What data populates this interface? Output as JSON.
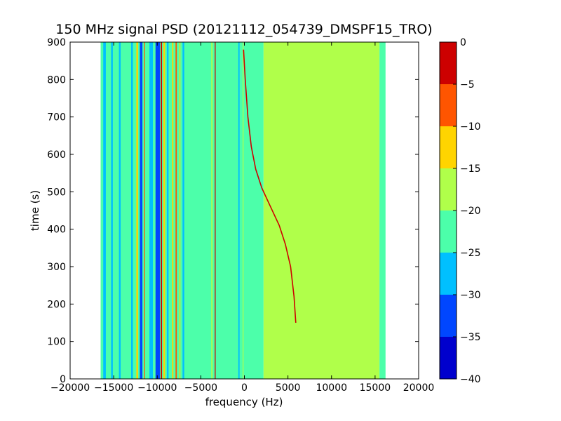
{
  "chart_data": {
    "type": "heatmap",
    "title": "150 MHz signal PSD (20121112_054739_DMSPF15_TRO)",
    "xlabel": "frequency (Hz)",
    "ylabel": "time (s)",
    "xlim": [
      -20000,
      20000
    ],
    "ylim": [
      0,
      900
    ],
    "xticks": [
      -20000,
      -15000,
      -10000,
      -5000,
      0,
      5000,
      10000,
      15000,
      20000
    ],
    "xtick_labels": [
      "−20000",
      "−15000",
      "−10000",
      "−5000",
      "0",
      "5000",
      "10000",
      "15000",
      "20000"
    ],
    "yticks": [
      0,
      100,
      200,
      300,
      400,
      500,
      600,
      700,
      800,
      900
    ],
    "ytick_labels": [
      "0",
      "100",
      "200",
      "300",
      "400",
      "500",
      "600",
      "700",
      "800",
      "900"
    ],
    "data_extent_x": [
      -16500,
      16200
    ],
    "colorbar": {
      "levels": [
        -40,
        -35,
        -30,
        -25,
        -20,
        -15,
        -10,
        -5,
        0
      ],
      "tick_labels": [
        "−40",
        "−35",
        "−30",
        "−25",
        "−20",
        "−15",
        "−10",
        "−5",
        "0"
      ],
      "colors": [
        "#0000cd",
        "#0046ff",
        "#00c0ff",
        "#4cffaa",
        "#b0ff4a",
        "#ffd400",
        "#ff5500",
        "#cd0000"
      ]
    },
    "regions": [
      {
        "x0": -16500,
        "x1": 0,
        "y0": 0,
        "y1": 900,
        "level": -22.5
      },
      {
        "x0": 0,
        "x1": 2200,
        "y0": 0,
        "y1": 900,
        "level": -20
      },
      {
        "x0": 2200,
        "x1": 15500,
        "y0": 0,
        "y1": 900,
        "level": -17.5
      },
      {
        "x0": 15500,
        "x1": 16200,
        "y0": 0,
        "y1": 900,
        "level": -22.5
      }
    ],
    "bands": [
      {
        "x0": -16200,
        "x1": -15900,
        "level": -27.5
      },
      {
        "x0": -15300,
        "x1": -15100,
        "level": -27.5
      },
      {
        "x0": -14400,
        "x1": -14200,
        "level": -27.5
      },
      {
        "x0": -13000,
        "x1": -12800,
        "level": -27.5
      },
      {
        "x0": -12400,
        "x1": -12200,
        "level": -12.5
      },
      {
        "x0": -12000,
        "x1": -11700,
        "level": -32.5
      },
      {
        "x0": -11500,
        "x1": -11400,
        "level": -7.5
      },
      {
        "x0": -10900,
        "x1": -10500,
        "level": -27.5
      },
      {
        "x0": -10200,
        "x1": -9700,
        "level": -32.5
      },
      {
        "x0": -9600,
        "x1": -9450,
        "level": -2.5
      },
      {
        "x0": -9300,
        "x1": -9100,
        "level": -12.5
      },
      {
        "x0": -8900,
        "x1": -8700,
        "level": -27.5
      },
      {
        "x0": -8300,
        "x1": -8150,
        "level": -12.5
      },
      {
        "x0": -7900,
        "x1": -7750,
        "level": -7.5
      },
      {
        "x0": -7450,
        "x1": -7350,
        "level": -12.5
      },
      {
        "x0": -7100,
        "x1": -6900,
        "level": -27.5
      },
      {
        "x0": -3400,
        "x1": -3300,
        "level": -2.5
      },
      {
        "x0": -3800,
        "x1": -3650,
        "level": -17.5
      },
      {
        "x0": -700,
        "x1": -550,
        "level": -27.5
      },
      {
        "x0": -200,
        "x1": -100,
        "level": -17.5
      }
    ],
    "doppler_curve": {
      "level": -2.5,
      "points": [
        [
          5900,
          150
        ],
        [
          5700,
          220
        ],
        [
          5300,
          300
        ],
        [
          4700,
          360
        ],
        [
          4000,
          410
        ],
        [
          3000,
          460
        ],
        [
          2000,
          510
        ],
        [
          1300,
          560
        ],
        [
          800,
          620
        ],
        [
          400,
          700
        ],
        [
          100,
          800
        ],
        [
          -100,
          880
        ]
      ]
    }
  }
}
